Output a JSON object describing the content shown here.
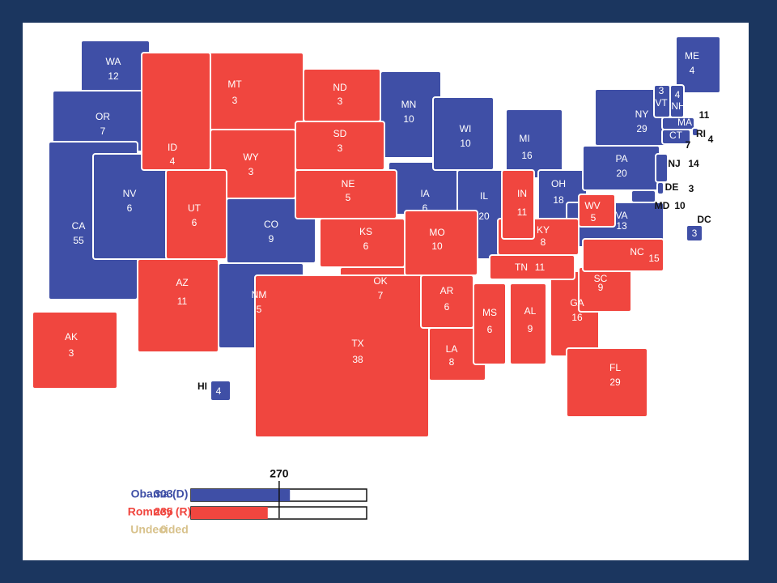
{
  "parties": [
    {
      "name": "Obama (D)",
      "total": 303,
      "color": "#3f4fa6",
      "states": [
        {
          "abbr": "WA",
          "votes": 12
        },
        {
          "abbr": "OR",
          "votes": 7
        },
        {
          "abbr": "CA",
          "votes": 55
        },
        {
          "abbr": "NV",
          "votes": 6
        },
        {
          "abbr": "CO",
          "votes": 9
        },
        {
          "abbr": "NM",
          "votes": 5
        },
        {
          "abbr": "MN",
          "votes": 10
        },
        {
          "abbr": "IA",
          "votes": 6
        },
        {
          "abbr": "WI",
          "votes": 10
        },
        {
          "abbr": "IL",
          "votes": 20
        },
        {
          "abbr": "MI",
          "votes": 16
        },
        {
          "abbr": "OH",
          "votes": 18
        },
        {
          "abbr": "PA",
          "votes": 20
        },
        {
          "abbr": "NY",
          "votes": 29
        },
        {
          "abbr": "VA",
          "votes": 13
        },
        {
          "abbr": "ME",
          "votes": 4
        },
        {
          "abbr": "VT",
          "votes": 3
        },
        {
          "abbr": "NH",
          "votes": 4
        },
        {
          "abbr": "MA",
          "votes": 11
        },
        {
          "abbr": "RI",
          "votes": 4
        },
        {
          "abbr": "CT",
          "votes": 7
        },
        {
          "abbr": "NJ",
          "votes": 14
        },
        {
          "abbr": "DE",
          "votes": 3
        },
        {
          "abbr": "MD",
          "votes": 10
        },
        {
          "abbr": "DC",
          "votes": 3
        },
        {
          "abbr": "HI",
          "votes": 4
        }
      ]
    },
    {
      "name": "Romney (R)",
      "total": 235,
      "color": "#f0463f",
      "states": [
        {
          "abbr": "MT",
          "votes": 3
        },
        {
          "abbr": "ID",
          "votes": 4
        },
        {
          "abbr": "WY",
          "votes": 3
        },
        {
          "abbr": "ND",
          "votes": 3
        },
        {
          "abbr": "SD",
          "votes": 3
        },
        {
          "abbr": "NE",
          "votes": 5
        },
        {
          "abbr": "UT",
          "votes": 6
        },
        {
          "abbr": "AZ",
          "votes": 11
        },
        {
          "abbr": "KS",
          "votes": 6
        },
        {
          "abbr": "OK",
          "votes": 7
        },
        {
          "abbr": "TX",
          "votes": 38
        },
        {
          "abbr": "MO",
          "votes": 10
        },
        {
          "abbr": "AR",
          "votes": 6
        },
        {
          "abbr": "LA",
          "votes": 8
        },
        {
          "abbr": "MS",
          "votes": 6
        },
        {
          "abbr": "AL",
          "votes": 9
        },
        {
          "abbr": "GA",
          "votes": 16
        },
        {
          "abbr": "FL",
          "votes": 29
        },
        {
          "abbr": "SC",
          "votes": 9
        },
        {
          "abbr": "NC",
          "votes": 15
        },
        {
          "abbr": "TN",
          "votes": 11
        },
        {
          "abbr": "KY",
          "votes": 8
        },
        {
          "abbr": "IN",
          "votes": 11
        },
        {
          "abbr": "WV",
          "votes": 5
        },
        {
          "abbr": "AK",
          "votes": 3
        }
      ]
    },
    {
      "name": "Undecided",
      "total": 0,
      "color": "#d8c28c",
      "states": []
    }
  ],
  "threshold": 270
}
